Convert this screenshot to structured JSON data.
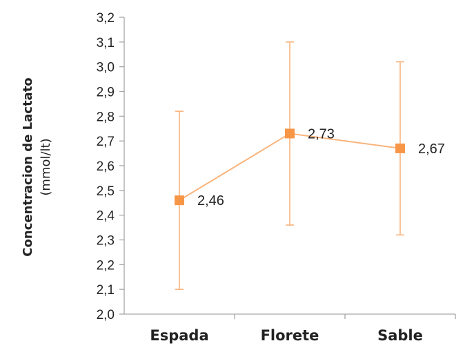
{
  "chart_data": {
    "type": "line",
    "title": "",
    "xlabel": "",
    "ylabel": [
      "Concentracion de Lactato",
      "(mmol/lt)"
    ],
    "categories": [
      "Espada",
      "Florete",
      "Sable"
    ],
    "series": [
      {
        "values": [
          2.46,
          2.73,
          2.67
        ],
        "error_low": [
          2.1,
          2.36,
          2.32
        ],
        "error_high": [
          2.82,
          3.1,
          3.02
        ],
        "labels": [
          "2,46",
          "2,73",
          "2,67"
        ]
      }
    ],
    "ylim": [
      2.0,
      3.2
    ],
    "yticks": [
      2.0,
      2.1,
      2.2,
      2.3,
      2.4,
      2.5,
      2.6,
      2.7,
      2.8,
      2.9,
      3.0,
      3.1,
      3.2
    ],
    "ytick_labels": [
      "2,0",
      "2,1",
      "2,2",
      "2,3",
      "2,4",
      "2,5",
      "2,6",
      "2,7",
      "2,8",
      "2,9",
      "3,0",
      "3,1",
      "3,2"
    ],
    "grid": false,
    "legend": "none",
    "colors": {
      "series": "#F79646",
      "line": "#F9B47C",
      "axis": "#A6A6A6",
      "text": "#222222"
    }
  }
}
